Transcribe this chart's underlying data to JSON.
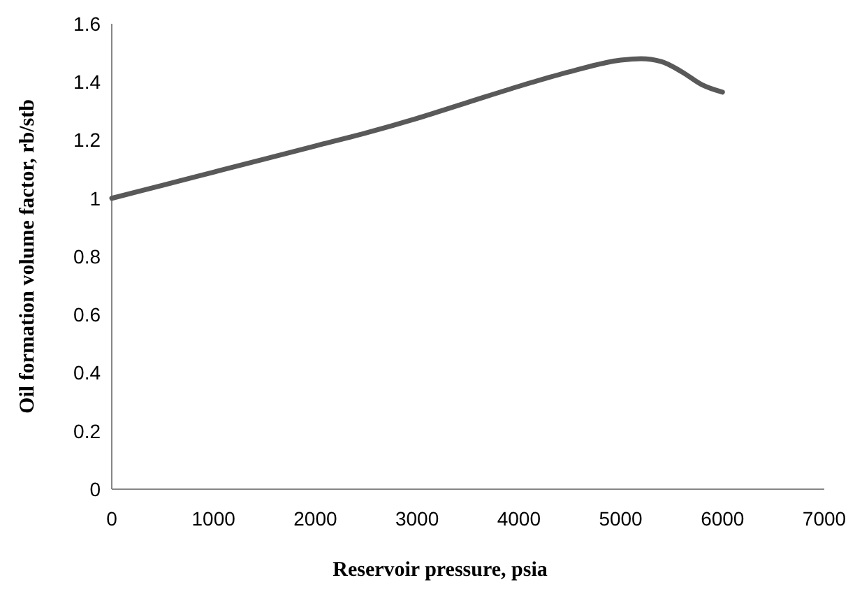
{
  "chart_data": {
    "type": "line",
    "xlabel": "Reservoir pressure, psia",
    "ylabel": "Oil formation volume factor, rb/stb",
    "x": [
      0,
      500,
      1000,
      1500,
      2000,
      2500,
      3000,
      3500,
      4000,
      4500,
      5000,
      5200,
      5400,
      5600,
      5800,
      6000
    ],
    "series": [
      {
        "color": "#595959",
        "values": [
          1.0,
          1.045,
          1.09,
          1.135,
          1.18,
          1.225,
          1.275,
          1.33,
          1.385,
          1.435,
          1.475,
          1.48,
          1.47,
          1.435,
          1.39,
          1.365
        ]
      }
    ],
    "xlim": [
      0,
      7000
    ],
    "xticks": [
      0,
      1000,
      2000,
      3000,
      4000,
      5000,
      6000,
      7000
    ],
    "ylim": [
      0,
      1.6
    ],
    "yticks": [
      0,
      0.2,
      0.4,
      0.6,
      0.8,
      1,
      1.2,
      1.4,
      1.6
    ],
    "grid": false,
    "marker": "none",
    "line_style": "solid"
  }
}
